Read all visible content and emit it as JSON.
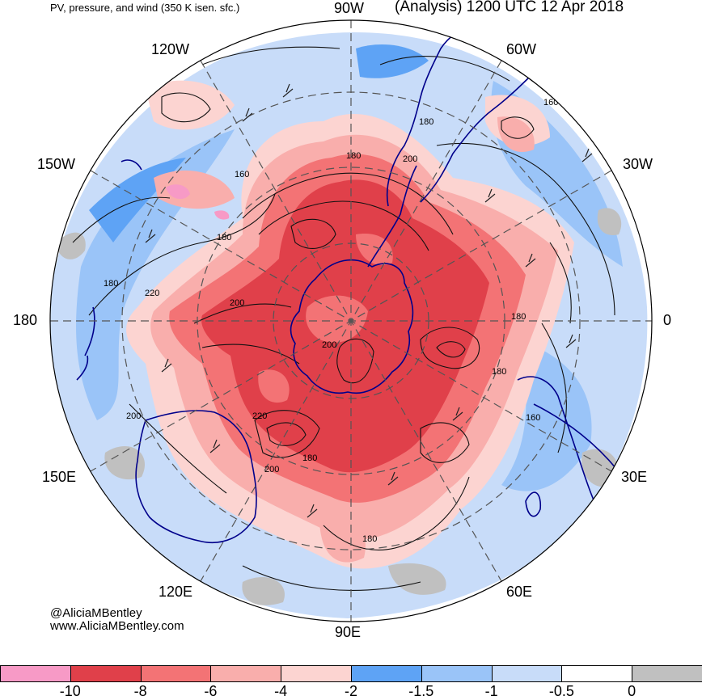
{
  "header": {
    "subtitle": "PV, pressure, and wind (350 K isen. sfc.)",
    "title": "(Analysis) 1200 UTC 12 Apr 2018"
  },
  "map": {
    "projection": "polar-stereographic",
    "hemisphere": "south",
    "longitude_labels": {
      "lon_90w": "90W",
      "lon_60w": "60W",
      "lon_30w": "30W",
      "lon_0": "0",
      "lon_30e": "30E",
      "lon_60e": "60E",
      "lon_90e": "90E",
      "lon_120e": "120E",
      "lon_150e": "150E",
      "lon_180": "180",
      "lon_150w": "150W",
      "lon_120w": "120W"
    },
    "contour_labels": [
      "160",
      "160",
      "160",
      "180",
      "180",
      "180",
      "180",
      "180",
      "180",
      "180",
      "180",
      "200",
      "200",
      "200",
      "200",
      "200",
      "220",
      "220"
    ]
  },
  "credits": {
    "twitter": "@AliciaMBentley",
    "website": "www.AliciaMBentley.com"
  },
  "colorbar": {
    "colors": [
      "#f79ac6",
      "#e0404a",
      "#f37375",
      "#f9aeac",
      "#fcd4d1",
      "#5ea3f5",
      "#9ac4f8",
      "#c8dcf9",
      "#ffffff",
      "#c0c0c0"
    ],
    "tick_labels": [
      "-10",
      "-8",
      "-6",
      "-4",
      "-2",
      "-1.5",
      "-1",
      "-0.5",
      "0"
    ]
  }
}
